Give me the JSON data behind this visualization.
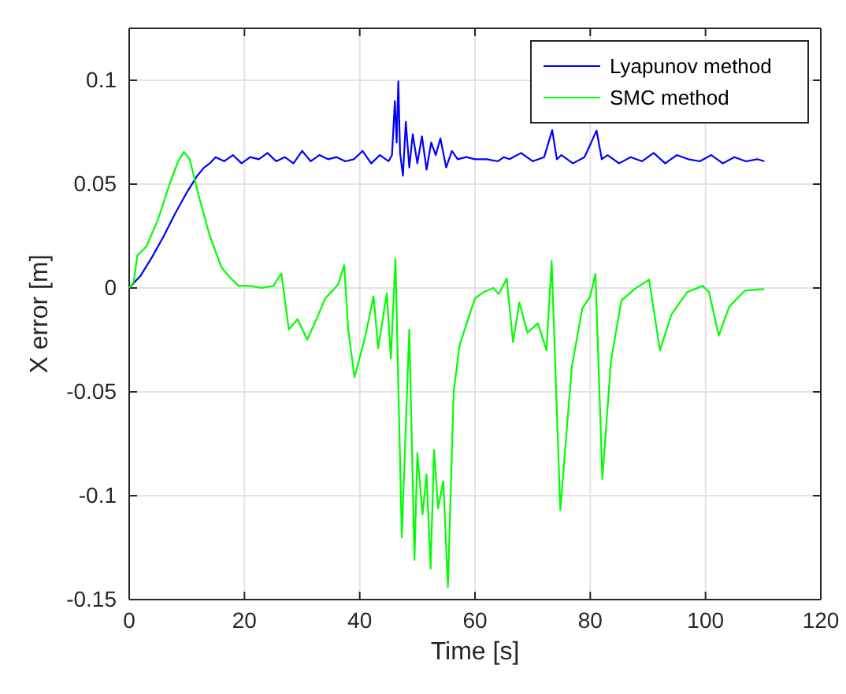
{
  "chart_data": {
    "type": "line",
    "xlabel": "Time [s]",
    "ylabel": "X error [m]",
    "xlim": [
      0,
      120
    ],
    "ylim": [
      -0.15,
      0.125
    ],
    "xticks": [
      0,
      20,
      40,
      60,
      80,
      100,
      120
    ],
    "yticks": [
      -0.15,
      -0.1,
      -0.05,
      0,
      0.05,
      0.1
    ],
    "grid": true,
    "legend": "top right",
    "line_style": "solid",
    "marker": "none",
    "series": [
      {
        "name": "Lyapunov method",
        "color": "#0000ff",
        "x": [
          0,
          2,
          4,
          6,
          8,
          10,
          11.8,
          13,
          14,
          15,
          16.5,
          18,
          19.5,
          21,
          22.5,
          24,
          25.5,
          27,
          28.5,
          30,
          31.5,
          33,
          34.5,
          36,
          37.5,
          39,
          40.5,
          42,
          43.5,
          45,
          45.6,
          46.1,
          46.4,
          46.7,
          47,
          47.5,
          48,
          48.6,
          49.2,
          50,
          50.8,
          51.6,
          52.4,
          53.2,
          54,
          55,
          56,
          57,
          58.5,
          60,
          62,
          64,
          65,
          66,
          68,
          70,
          72,
          73.4,
          74.2,
          75,
          77,
          79,
          81.1,
          82,
          83,
          85,
          87,
          89,
          91,
          93,
          95,
          97,
          99,
          101,
          103,
          105,
          107,
          109,
          110.2
        ],
        "values": [
          0,
          0.006,
          0.015,
          0.025,
          0.036,
          0.046,
          0.054,
          0.058,
          0.06,
          0.063,
          0.061,
          0.064,
          0.06,
          0.063,
          0.062,
          0.065,
          0.061,
          0.063,
          0.06,
          0.066,
          0.061,
          0.064,
          0.062,
          0.063,
          0.061,
          0.062,
          0.066,
          0.06,
          0.064,
          0.061,
          0.064,
          0.09,
          0.07,
          0.0995,
          0.065,
          0.054,
          0.08,
          0.058,
          0.074,
          0.06,
          0.073,
          0.057,
          0.07,
          0.064,
          0.072,
          0.058,
          0.066,
          0.062,
          0.063,
          0.062,
          0.062,
          0.061,
          0.063,
          0.062,
          0.065,
          0.061,
          0.063,
          0.076,
          0.062,
          0.064,
          0.06,
          0.063,
          0.0758,
          0.062,
          0.064,
          0.06,
          0.063,
          0.061,
          0.065,
          0.06,
          0.064,
          0.062,
          0.061,
          0.064,
          0.06,
          0.063,
          0.061,
          0.062,
          0.061
        ]
      },
      {
        "name": "SMC method",
        "color": "#00ff00",
        "x": [
          0,
          0.8,
          1.4,
          3,
          5,
          7,
          8.5,
          9.5,
          10.5,
          12,
          14,
          16,
          17.5,
          19,
          21,
          23,
          25,
          26.4,
          27.7,
          29.2,
          30.9,
          32.5,
          34,
          35.4,
          36.3,
          37.3,
          38,
          39.1,
          40.9,
          42.4,
          43.2,
          44.7,
          45.4,
          46.2,
          47.3,
          48.6,
          49.5,
          50,
          50.9,
          51.6,
          52.3,
          52.9,
          53.6,
          54.5,
          55.3,
          56.3,
          57.3,
          58.2,
          60,
          61.5,
          63.2,
          64.1,
          65.5,
          66.6,
          67.7,
          69.1,
          70.9,
          72.4,
          73.3,
          74.8,
          76.8,
          78.6,
          80,
          80.9,
          82.1,
          83.6,
          85.4,
          87.7,
          90.2,
          92.1,
          94.1,
          96.8,
          99.5,
          100.6,
          102.3,
          104.1,
          106.8,
          110.2
        ],
        "values": [
          0,
          0.003,
          0.0156,
          0.02,
          0.033,
          0.05,
          0.061,
          0.0656,
          0.062,
          0.045,
          0.025,
          0.01,
          0.005,
          0.001,
          0.001,
          0,
          0.001,
          0.007,
          -0.02,
          -0.015,
          -0.0248,
          -0.015,
          -0.005,
          -0.001,
          0.002,
          0.011,
          -0.02,
          -0.043,
          -0.024,
          -0.004,
          -0.029,
          -0.0025,
          -0.034,
          0.0139,
          -0.12,
          -0.02,
          -0.131,
          -0.0795,
          -0.109,
          -0.0897,
          -0.135,
          -0.078,
          -0.106,
          -0.093,
          -0.144,
          -0.05,
          -0.028,
          -0.02,
          -0.005,
          -0.002,
          0,
          -0.003,
          0.0045,
          -0.026,
          -0.007,
          -0.0215,
          -0.017,
          -0.03,
          0.013,
          -0.107,
          -0.038,
          -0.01,
          -0.004,
          0.0068,
          -0.092,
          -0.035,
          -0.006,
          -0.0005,
          0.004,
          -0.03,
          -0.0127,
          -0.002,
          0.001,
          -0.002,
          -0.023,
          -0.009,
          -0.0013,
          -0.0005
        ]
      }
    ]
  }
}
